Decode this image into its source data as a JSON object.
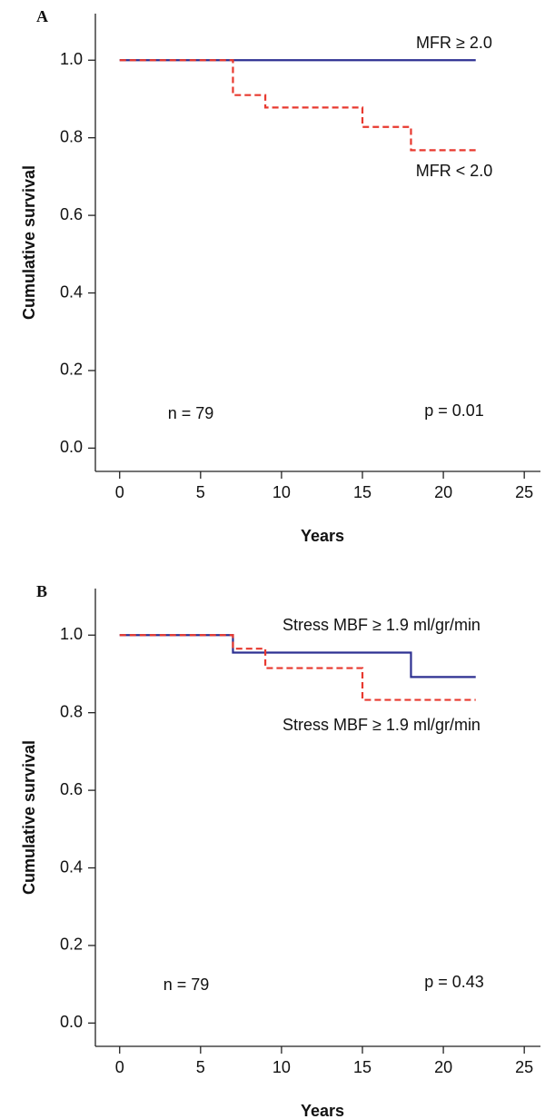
{
  "chart_data": [
    {
      "type": "step",
      "panel": "A",
      "xlabel": "Years",
      "ylabel": "Cumulative survival",
      "xlim": [
        -1.5,
        26
      ],
      "ylim": [
        -0.06,
        1.12
      ],
      "xticks": [
        0,
        5,
        10,
        15,
        20,
        25
      ],
      "yticks": [
        {
          "value": 0,
          "label": "0.0"
        },
        0.2,
        0.4,
        0.6,
        0.8,
        {
          "value": 1,
          "label": "1.0"
        }
      ],
      "series": [
        {
          "name": "MFR ≥ 2.0",
          "color": "#2e3192",
          "dash": false,
          "x": [
            0,
            22
          ],
          "values": [
            1,
            1
          ]
        },
        {
          "name": "MFR < 2.0",
          "color": "#e8392f",
          "dash": true,
          "x": [
            0,
            7,
            9,
            15,
            18,
            22
          ],
          "values": [
            1,
            0.91,
            0.878,
            0.828,
            0.768,
            0.768
          ]
        }
      ],
      "annotations": [
        "n = 79",
        "p = 0.01"
      ]
    },
    {
      "type": "step",
      "panel": "B",
      "xlabel": "Years",
      "ylabel": "Cumulative survival",
      "xlim": [
        -1.5,
        26
      ],
      "ylim": [
        -0.06,
        1.12
      ],
      "xticks": [
        0,
        5,
        10,
        15,
        20,
        25
      ],
      "yticks": [
        {
          "value": 0,
          "label": "0.0"
        },
        0.2,
        0.4,
        0.6,
        0.8,
        {
          "value": 1,
          "label": "1.0"
        }
      ],
      "series": [
        {
          "name": "Stress MBF ≥ 1.9 ml/gr/min",
          "color": "#2e3192",
          "dash": false,
          "x": [
            0,
            7,
            18,
            22
          ],
          "values": [
            1,
            0.955,
            0.892,
            0.892
          ]
        },
        {
          "name": "Stress MBF ≥ 1.9 ml/gr/min",
          "color": "#e8392f",
          "dash": true,
          "x": [
            0,
            7,
            9,
            15,
            22
          ],
          "values": [
            1,
            0.965,
            0.915,
            0.833,
            0.833
          ]
        }
      ],
      "annotations": [
        "n = 79",
        "p = 0.43"
      ]
    }
  ]
}
